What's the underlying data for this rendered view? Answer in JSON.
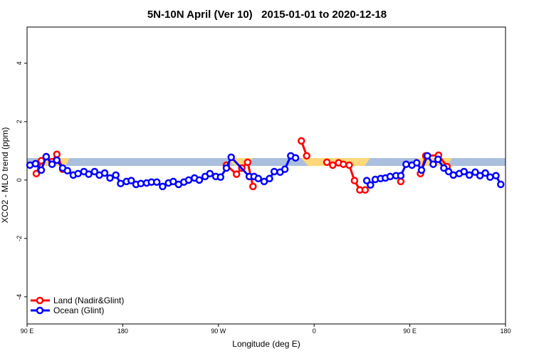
{
  "chart_data": {
    "type": "line",
    "title": "5N-10N April (Ver 10)   2015-01-01 to 2020-12-18",
    "x_label": "Longitude (deg E)",
    "y_label": "XCO2 - MLO trend (ppm)",
    "xlim": [
      90,
      540
    ],
    "xticks": [
      {
        "value": 90,
        "label": "90 E"
      },
      {
        "value": 180,
        "label": "180"
      },
      {
        "value": 270,
        "label": "90 W"
      },
      {
        "value": 360,
        "label": "0"
      },
      {
        "value": 450,
        "label": "90 E"
      },
      {
        "value": 540,
        "label": "180"
      }
    ],
    "ylim": [
      -4.93,
      5.24
    ],
    "yticks": [
      4,
      2,
      0,
      -2,
      -4
    ],
    "legend": "bottom-left",
    "series": [
      {
        "name": "Land (Nadir&Glint)",
        "color": "#ff0000",
        "x": [
          98.7,
          103.4,
          108,
          113.5,
          118,
          123.5,
          null,
          277.5,
          287,
          292,
          297.5,
          302.5,
          null,
          348,
          353,
          null,
          372,
          377.5,
          383,
          387.5,
          393,
          398,
          403,
          408,
          null,
          441.5,
          null,
          460,
          465,
          477,
          485
        ],
        "values": [
          0.22,
          0.66,
          0.8,
          0.63,
          0.88,
          0.37,
          null,
          0.51,
          0.2,
          0.41,
          0.61,
          -0.22,
          null,
          1.34,
          0.83,
          null,
          0.61,
          0.51,
          0.59,
          0.54,
          0.51,
          -0.02,
          -0.34,
          -0.34,
          null,
          -0.05,
          null,
          0.22,
          0.83,
          0.85,
          0.46
        ]
      },
      {
        "name": "Ocean (Glint)",
        "color": "#0000ff",
        "x": [
          92.7,
          98,
          103.4,
          108,
          113.5,
          118,
          123.5,
          128,
          133.5,
          138,
          143.5,
          148,
          153.5,
          158,
          163,
          168,
          173.5,
          178,
          183.5,
          188,
          192.5,
          197,
          202.5,
          207,
          212,
          217.5,
          223,
          227.5,
          232.5,
          237.5,
          242,
          247.5,
          252,
          257.5,
          262,
          267.5,
          272,
          277.5,
          282,
          299,
          303.5,
          307.5,
          313,
          318,
          322.5,
          328,
          332.5,
          338,
          342.5,
          null,
          409.5,
          413,
          417.5,
          422.5,
          427,
          431.5,
          437,
          441.5,
          446.5,
          452,
          456.5,
          461,
          466.5,
          472,
          476.5,
          482,
          486.5,
          491,
          496.5,
          501,
          506,
          511.5,
          516,
          521,
          525.5,
          531,
          535.5
        ],
        "values": [
          0.51,
          0.56,
          0.34,
          0.8,
          0.54,
          0.68,
          0.41,
          0.32,
          0.17,
          0.22,
          0.29,
          0.2,
          0.29,
          0.17,
          0.24,
          0.07,
          0.17,
          -0.12,
          -0.05,
          -0.02,
          -0.15,
          -0.12,
          -0.1,
          -0.07,
          -0.07,
          -0.22,
          -0.1,
          -0.05,
          -0.15,
          -0.07,
          0,
          0.07,
          0,
          0.12,
          0.22,
          0.12,
          0.1,
          0.41,
          0.78,
          0.12,
          0.12,
          0.05,
          -0.05,
          0.05,
          0.29,
          0.27,
          0.37,
          0.83,
          0.76,
          null,
          -0.02,
          -0.17,
          0.02,
          0.05,
          0.07,
          0.12,
          0.15,
          0.15,
          0.54,
          0.51,
          0.59,
          0.34,
          0.83,
          0.54,
          0.71,
          0.41,
          0.29,
          0.17,
          0.22,
          0.29,
          0.17,
          0.27,
          0.15,
          0.24,
          0.1,
          0.15,
          -0.15
        ]
      }
    ]
  }
}
